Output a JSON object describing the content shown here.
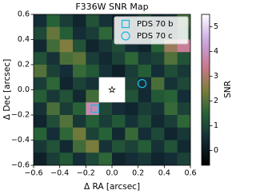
{
  "chart_data": {
    "type": "heatmap",
    "title": "F336W SNR Map",
    "xlabel": "Δ RA [arcsec]",
    "ylabel": "Δ Dec [arcsec]",
    "xlim": [
      -0.6,
      0.6
    ],
    "ylim": [
      -0.6,
      0.6
    ],
    "xticks": [
      {
        "value": -0.6,
        "label": "−0.6"
      },
      {
        "value": -0.4,
        "label": "−0.4"
      },
      {
        "value": -0.2,
        "label": "−0.2"
      },
      {
        "value": 0,
        "label": "0.0"
      },
      0.2,
      0.4,
      0.6
    ],
    "yticks": [
      {
        "value": -0.6,
        "label": "−0.6"
      },
      {
        "value": -0.4,
        "label": "−0.4"
      },
      {
        "value": -0.2,
        "label": "−0.2"
      },
      {
        "value": 0,
        "label": "0.0"
      },
      0.2,
      0.4,
      0.6
    ],
    "z": [
      [
        0.5,
        1.5,
        0.8,
        0.3,
        1.2,
        0.6,
        0.2,
        0.4,
        1.0,
        0.3,
        0.5,
        1.8
      ],
      [
        1.0,
        2.2,
        1.4,
        0.5,
        0.8,
        1.6,
        0.4,
        0.2,
        0.9,
        1.2,
        0.6,
        1.4
      ],
      [
        0.4,
        1.8,
        2.5,
        1.2,
        0.3,
        0.7,
        1.1,
        0.5,
        0.3,
        1.5,
        2.8,
        3.5
      ],
      [
        1.2,
        0.6,
        1.9,
        2.1,
        0.8,
        0.4,
        0.9,
        1.6,
        0.7,
        0.9,
        2.0,
        1.2
      ],
      [
        2.0,
        0.9,
        0.5,
        1.7,
        1.3,
        0.6,
        0.2,
        0.8,
        1.4,
        0.5,
        1.1,
        0.7
      ],
      [
        0.8,
        1.6,
        0.3,
        0.9,
        0.6,
        null,
        null,
        0.9,
        0.5,
        1.9,
        0.6,
        1.0
      ],
      [
        1.4,
        0.7,
        1.2,
        0.4,
        1.8,
        null,
        null,
        1.2,
        0.4,
        1.3,
        1.5,
        0.5
      ],
      [
        0.6,
        1.9,
        0.8,
        1.5,
        3.8,
        1.0,
        0.5,
        0.3,
        0.8,
        0.6,
        1.7,
        0.9
      ],
      [
        0.3,
        1.1,
        2.0,
        0.7,
        1.4,
        0.8,
        1.3,
        0.6,
        1.1,
        0.4,
        0.8,
        1.6
      ],
      [
        1.5,
        0.5,
        1.6,
        2.3,
        0.9,
        1.5,
        0.4,
        1.7,
        0.5,
        1.0,
        0.3,
        0.7
      ],
      [
        0.7,
        1.2,
        0.4,
        1.8,
        2.4,
        0.6,
        1.2,
        0.9,
        1.4,
        0.6,
        1.2,
        0.4
      ],
      [
        0.2,
        0.8,
        1.3,
        0.5,
        1.0,
        1.6,
        0.3,
        0.5,
        0.7,
        0.3,
        0.5,
        0.9
      ]
    ],
    "colorbar": {
      "label": "SNR",
      "lim": [
        -0.6,
        5.5
      ],
      "ticks": [
        0,
        1,
        2,
        3,
        4,
        5
      ]
    },
    "star": {
      "x": 0,
      "y": 0
    },
    "points": [
      {
        "name": "PDS 70 b",
        "marker": "square",
        "color": "#1fb8e0",
        "x": -0.13,
        "y": -0.15
      },
      {
        "name": "PDS 70 c",
        "marker": "circle",
        "color": "#1fb8e0",
        "x": 0.23,
        "y": 0.05
      }
    ],
    "legend": "upper right"
  }
}
